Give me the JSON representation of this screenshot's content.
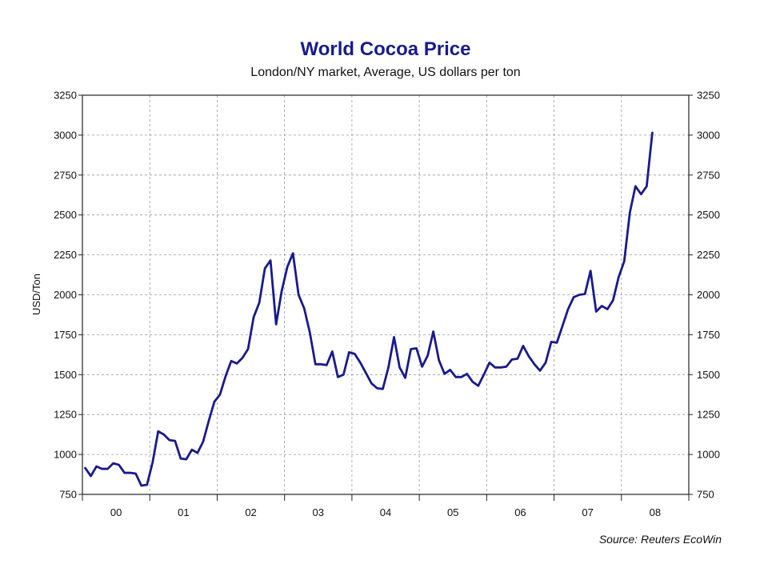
{
  "chart_data": {
    "type": "line",
    "title": "World Cocoa Price",
    "subtitle": "London/NY market, Average, US dollars per ton",
    "ylabel": "USD/Ton",
    "xlabel": "",
    "source": "Source: Reuters EcoWin",
    "ylim": [
      750,
      3250
    ],
    "y_ticks": [
      750,
      1000,
      1250,
      1500,
      1750,
      2000,
      2250,
      2500,
      2750,
      3000,
      3250
    ],
    "y_axis_both_sides": true,
    "grid": true,
    "x_start": "2000-01",
    "x_end": "2008-12",
    "x_tick_labels": [
      "00",
      "01",
      "02",
      "03",
      "04",
      "05",
      "06",
      "07",
      "08"
    ],
    "line_color": "#1a1a8c",
    "series": [
      {
        "x": [
          "2000-01",
          "2000-02",
          "2000-03",
          "2000-04",
          "2000-05",
          "2000-06",
          "2000-07",
          "2000-08",
          "2000-09",
          "2000-10",
          "2000-11",
          "2000-12",
          "2001-01",
          "2001-02",
          "2001-03",
          "2001-04",
          "2001-05",
          "2001-06",
          "2001-07",
          "2001-08",
          "2001-09",
          "2001-10",
          "2001-11",
          "2001-12",
          "2002-01",
          "2002-02",
          "2002-03",
          "2002-04",
          "2002-05",
          "2002-06",
          "2002-07",
          "2002-08",
          "2002-09",
          "2002-10",
          "2002-11",
          "2002-12",
          "2003-01",
          "2003-02",
          "2003-03",
          "2003-04",
          "2003-05",
          "2003-06",
          "2003-07",
          "2003-08",
          "2003-09",
          "2003-10",
          "2003-11",
          "2003-12",
          "2004-01",
          "2004-02",
          "2004-03",
          "2004-04",
          "2004-05",
          "2004-06",
          "2004-07",
          "2004-08",
          "2004-09",
          "2004-10",
          "2004-11",
          "2004-12",
          "2005-01",
          "2005-02",
          "2005-03",
          "2005-04",
          "2005-05",
          "2005-06",
          "2005-07",
          "2005-08",
          "2005-09",
          "2005-10",
          "2005-11",
          "2005-12",
          "2006-01",
          "2006-02",
          "2006-03",
          "2006-04",
          "2006-05",
          "2006-06",
          "2006-07",
          "2006-08",
          "2006-09",
          "2006-10",
          "2006-11",
          "2006-12",
          "2007-01",
          "2007-02",
          "2007-03",
          "2007-04",
          "2007-05",
          "2007-06",
          "2007-07",
          "2007-08",
          "2007-09",
          "2007-10",
          "2007-11",
          "2007-12",
          "2008-01",
          "2008-02",
          "2008-03",
          "2008-04",
          "2008-05",
          "2008-06"
        ],
        "values": [
          915,
          865,
          925,
          910,
          910,
          945,
          935,
          885,
          885,
          880,
          805,
          810,
          950,
          1145,
          1125,
          1090,
          1085,
          975,
          970,
          1030,
          1010,
          1080,
          1210,
          1330,
          1375,
          1490,
          1585,
          1570,
          1605,
          1660,
          1860,
          1950,
          2165,
          2215,
          1815,
          2025,
          2175,
          2260,
          2000,
          1915,
          1765,
          1565,
          1565,
          1560,
          1645,
          1485,
          1500,
          1640,
          1630,
          1575,
          1510,
          1445,
          1415,
          1410,
          1545,
          1735,
          1545,
          1480,
          1660,
          1665,
          1550,
          1620,
          1770,
          1590,
          1505,
          1530,
          1485,
          1485,
          1505,
          1455,
          1430,
          1500,
          1575,
          1545,
          1545,
          1550,
          1595,
          1600,
          1680,
          1615,
          1565,
          1525,
          1575,
          1705,
          1700,
          1805,
          1910,
          1985,
          2000,
          2005,
          2150,
          1895,
          1930,
          1910,
          1965,
          2110,
          2210,
          2515,
          2680,
          2630,
          2680,
          3015
        ]
      }
    ]
  }
}
